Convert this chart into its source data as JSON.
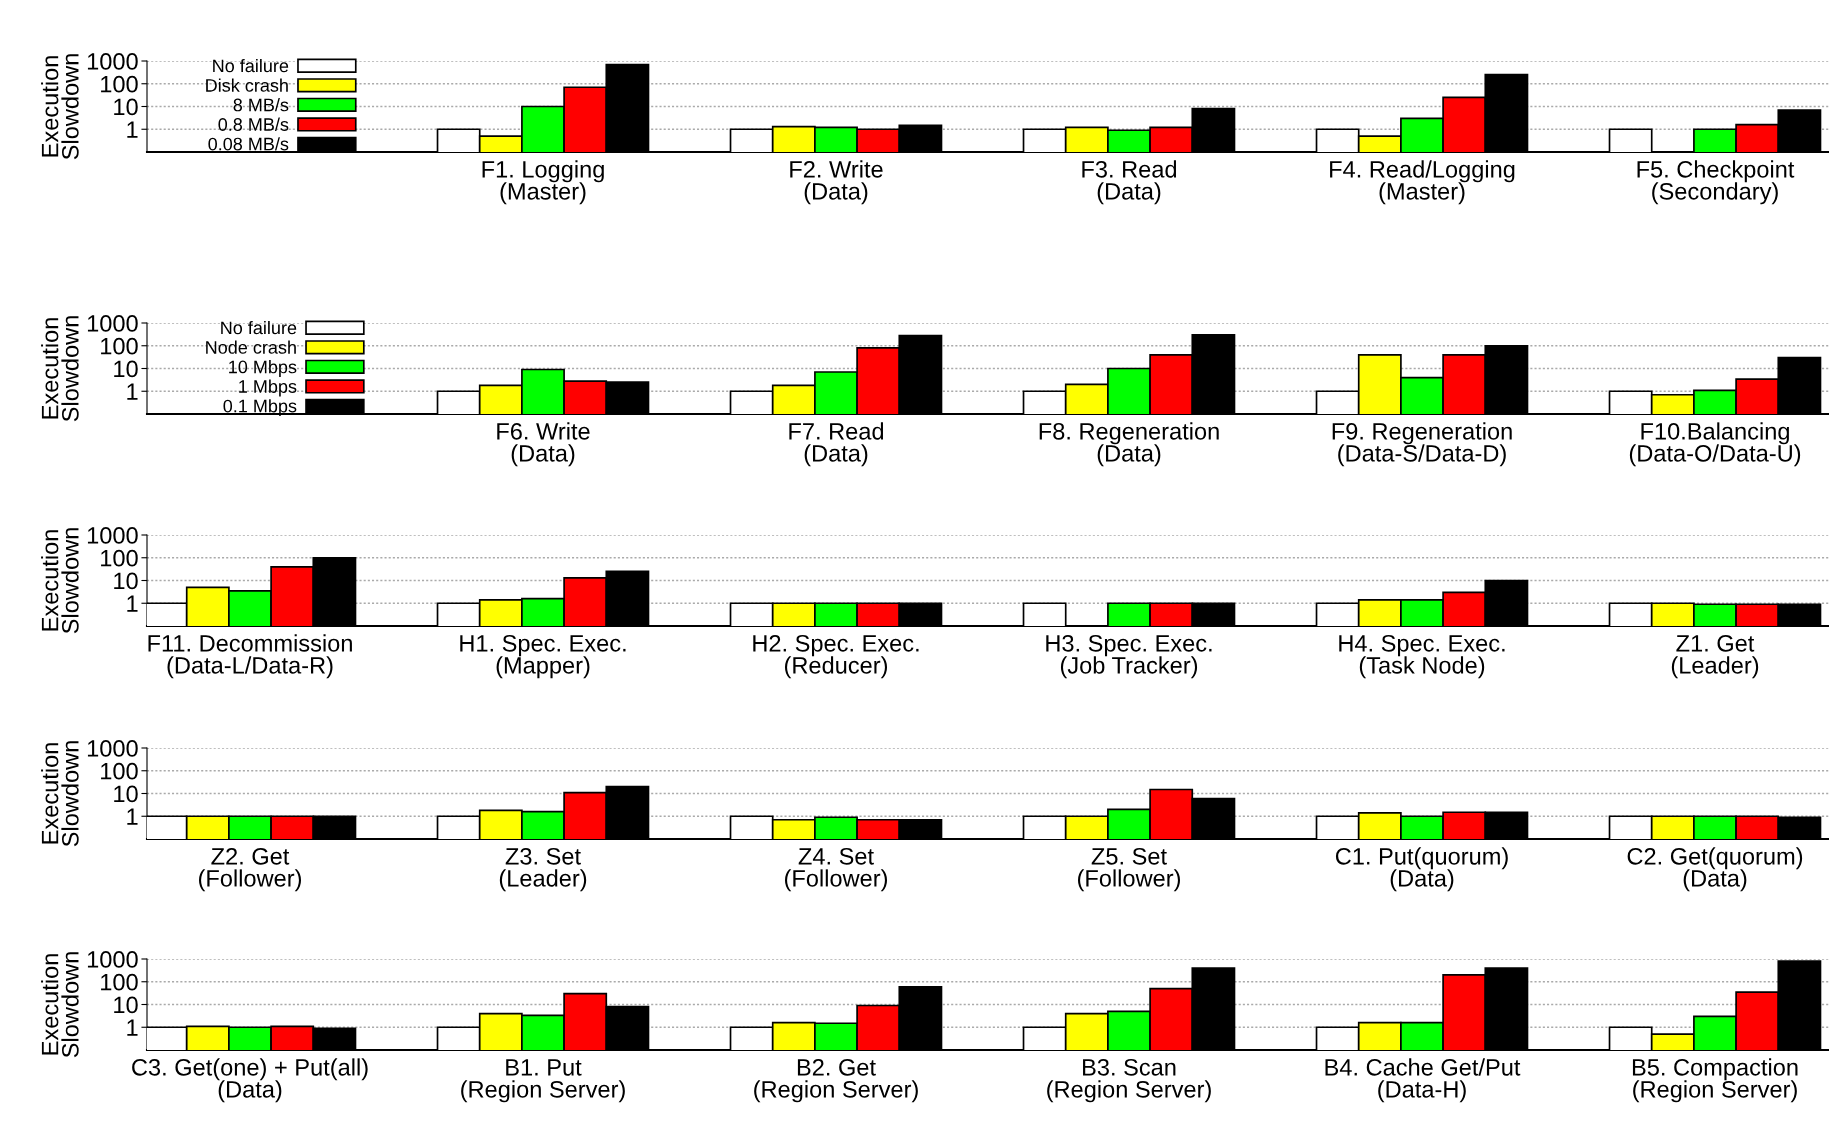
{
  "chart_data": [
    {
      "type": "bar",
      "ylabel": "Execution\nSlowdown",
      "legend": "left",
      "log": true,
      "ylim": [
        0.1,
        1000
      ],
      "yticks": [
        1,
        10,
        100,
        1000
      ],
      "grid": "y",
      "categories": [
        "F1. Logging\n(Master)",
        "F2. Write\n(Data)",
        "F3. Read\n(Data)",
        "F4. Read/Logging\n(Master)",
        "F5. Checkpoint\n(Secondary)"
      ],
      "series": [
        {
          "name": "No failure",
          "color": "#ffffff",
          "values": [
            1,
            1,
            1,
            1,
            1
          ]
        },
        {
          "name": "Disk crash",
          "color": "#ffff00",
          "values": [
            0.5,
            1.3,
            1.2,
            0.5,
            null
          ]
        },
        {
          "name": "8 MB/s",
          "color": "#00ff00",
          "values": [
            10,
            1.2,
            0.9,
            3,
            1
          ]
        },
        {
          "name": "0.8 MB/s",
          "color": "#ff0000",
          "values": [
            70,
            1,
            1.2,
            25,
            1.6
          ]
        },
        {
          "name": "0.08 MB/s",
          "color": "#000000",
          "values": [
            700,
            1.5,
            8,
            250,
            7
          ]
        }
      ]
    },
    {
      "type": "bar",
      "ylabel": "Execution\nSlowdown",
      "legend": "left",
      "log": true,
      "ylim": [
        0.1,
        1000
      ],
      "yticks": [
        1,
        10,
        100,
        1000
      ],
      "grid": "y",
      "categories": [
        "F6. Write\n(Data)",
        "F7. Read\n(Data)",
        "F8. Regeneration\n(Data)",
        "F9. Regeneration\n(Data-S/Data-D)",
        "F10.Balancing\n(Data-O/Data-U)"
      ],
      "series": [
        {
          "name": "No failure",
          "color": "#ffffff",
          "values": [
            1,
            1,
            1,
            1,
            1
          ]
        },
        {
          "name": "Node crash",
          "color": "#ffff00",
          "values": [
            1.8,
            1.8,
            2,
            40,
            0.7
          ]
        },
        {
          "name": "10 Mbps",
          "color": "#00ff00",
          "values": [
            9,
            7,
            10,
            4,
            1.1
          ]
        },
        {
          "name": "1 Mbps",
          "color": "#ff0000",
          "values": [
            2.8,
            80,
            40,
            40,
            3.4
          ]
        },
        {
          "name": "0.1 Mbps",
          "color": "#000000",
          "values": [
            2.5,
            280,
            300,
            100,
            30
          ]
        }
      ]
    },
    {
      "type": "bar",
      "ylabel": "Execution\nSlowdown",
      "log": true,
      "ylim": [
        0.1,
        1000
      ],
      "yticks": [
        1,
        10,
        100,
        1000
      ],
      "grid": "y",
      "categories": [
        "F11. Decommission\n(Data-L/Data-R)",
        "H1. Spec. Exec.\n(Mapper)",
        "H2. Spec. Exec.\n(Reducer)",
        "H3. Spec. Exec.\n(Job Tracker)",
        "H4. Spec. Exec.\n(Task Node)",
        "Z1. Get\n(Leader)"
      ],
      "series": [
        {
          "color": "#ffffff",
          "values": [
            1,
            1,
            1,
            1,
            1,
            1
          ]
        },
        {
          "color": "#ffff00",
          "values": [
            5,
            1.4,
            1,
            null,
            1.4,
            1
          ]
        },
        {
          "color": "#00ff00",
          "values": [
            3.5,
            1.6,
            1,
            1,
            1.4,
            0.9
          ]
        },
        {
          "color": "#ff0000",
          "values": [
            40,
            13,
            1,
            1,
            3,
            0.9
          ]
        },
        {
          "color": "#000000",
          "values": [
            100,
            25,
            1,
            1,
            10,
            0.9
          ]
        }
      ]
    },
    {
      "type": "bar",
      "ylabel": "Execution\nSlowdown",
      "log": true,
      "ylim": [
        0.1,
        1000
      ],
      "yticks": [
        1,
        10,
        100,
        1000
      ],
      "grid": "y",
      "categories": [
        "Z2. Get\n(Follower)",
        "Z3. Set\n(Leader)",
        "Z4. Set\n(Follower)",
        "Z5. Set\n(Follower)",
        "C1. Put(quorum)\n(Data)",
        "C2. Get(quorum)\n(Data)"
      ],
      "series": [
        {
          "color": "#ffffff",
          "values": [
            1,
            1,
            1,
            1,
            1,
            1
          ]
        },
        {
          "color": "#ffff00",
          "values": [
            1,
            1.8,
            0.7,
            1,
            1.4,
            1
          ]
        },
        {
          "color": "#00ff00",
          "values": [
            1,
            1.6,
            0.9,
            2,
            1,
            1
          ]
        },
        {
          "color": "#ff0000",
          "values": [
            1,
            11,
            0.7,
            15,
            1.5,
            1
          ]
        },
        {
          "color": "#000000",
          "values": [
            1,
            20,
            0.7,
            6,
            1.5,
            0.9
          ]
        }
      ]
    },
    {
      "type": "bar",
      "ylabel": "Execution\nSlowdown",
      "log": true,
      "ylim": [
        0.1,
        1000
      ],
      "yticks": [
        1,
        10,
        100,
        1000
      ],
      "grid": "y",
      "categories": [
        "C3. Get(one) + Put(all)\n(Data)",
        "B1. Put\n(Region Server)",
        "B2. Get\n(Region Server)",
        "B3. Scan\n(Region Server)",
        "B4. Cache Get/Put\n(Data-H)",
        "B5. Compaction\n(Region Server)"
      ],
      "series": [
        {
          "color": "#ffffff",
          "values": [
            1,
            1,
            1,
            1,
            1,
            1
          ]
        },
        {
          "color": "#ffff00",
          "values": [
            1.1,
            4,
            1.6,
            4,
            1.6,
            0.5
          ]
        },
        {
          "color": "#00ff00",
          "values": [
            1,
            3.3,
            1.5,
            5,
            1.6,
            3
          ]
        },
        {
          "color": "#ff0000",
          "values": [
            1.1,
            30,
            9,
            50,
            200,
            35
          ]
        },
        {
          "color": "#000000",
          "values": [
            0.9,
            8,
            60,
            400,
            400,
            800
          ]
        }
      ]
    }
  ]
}
